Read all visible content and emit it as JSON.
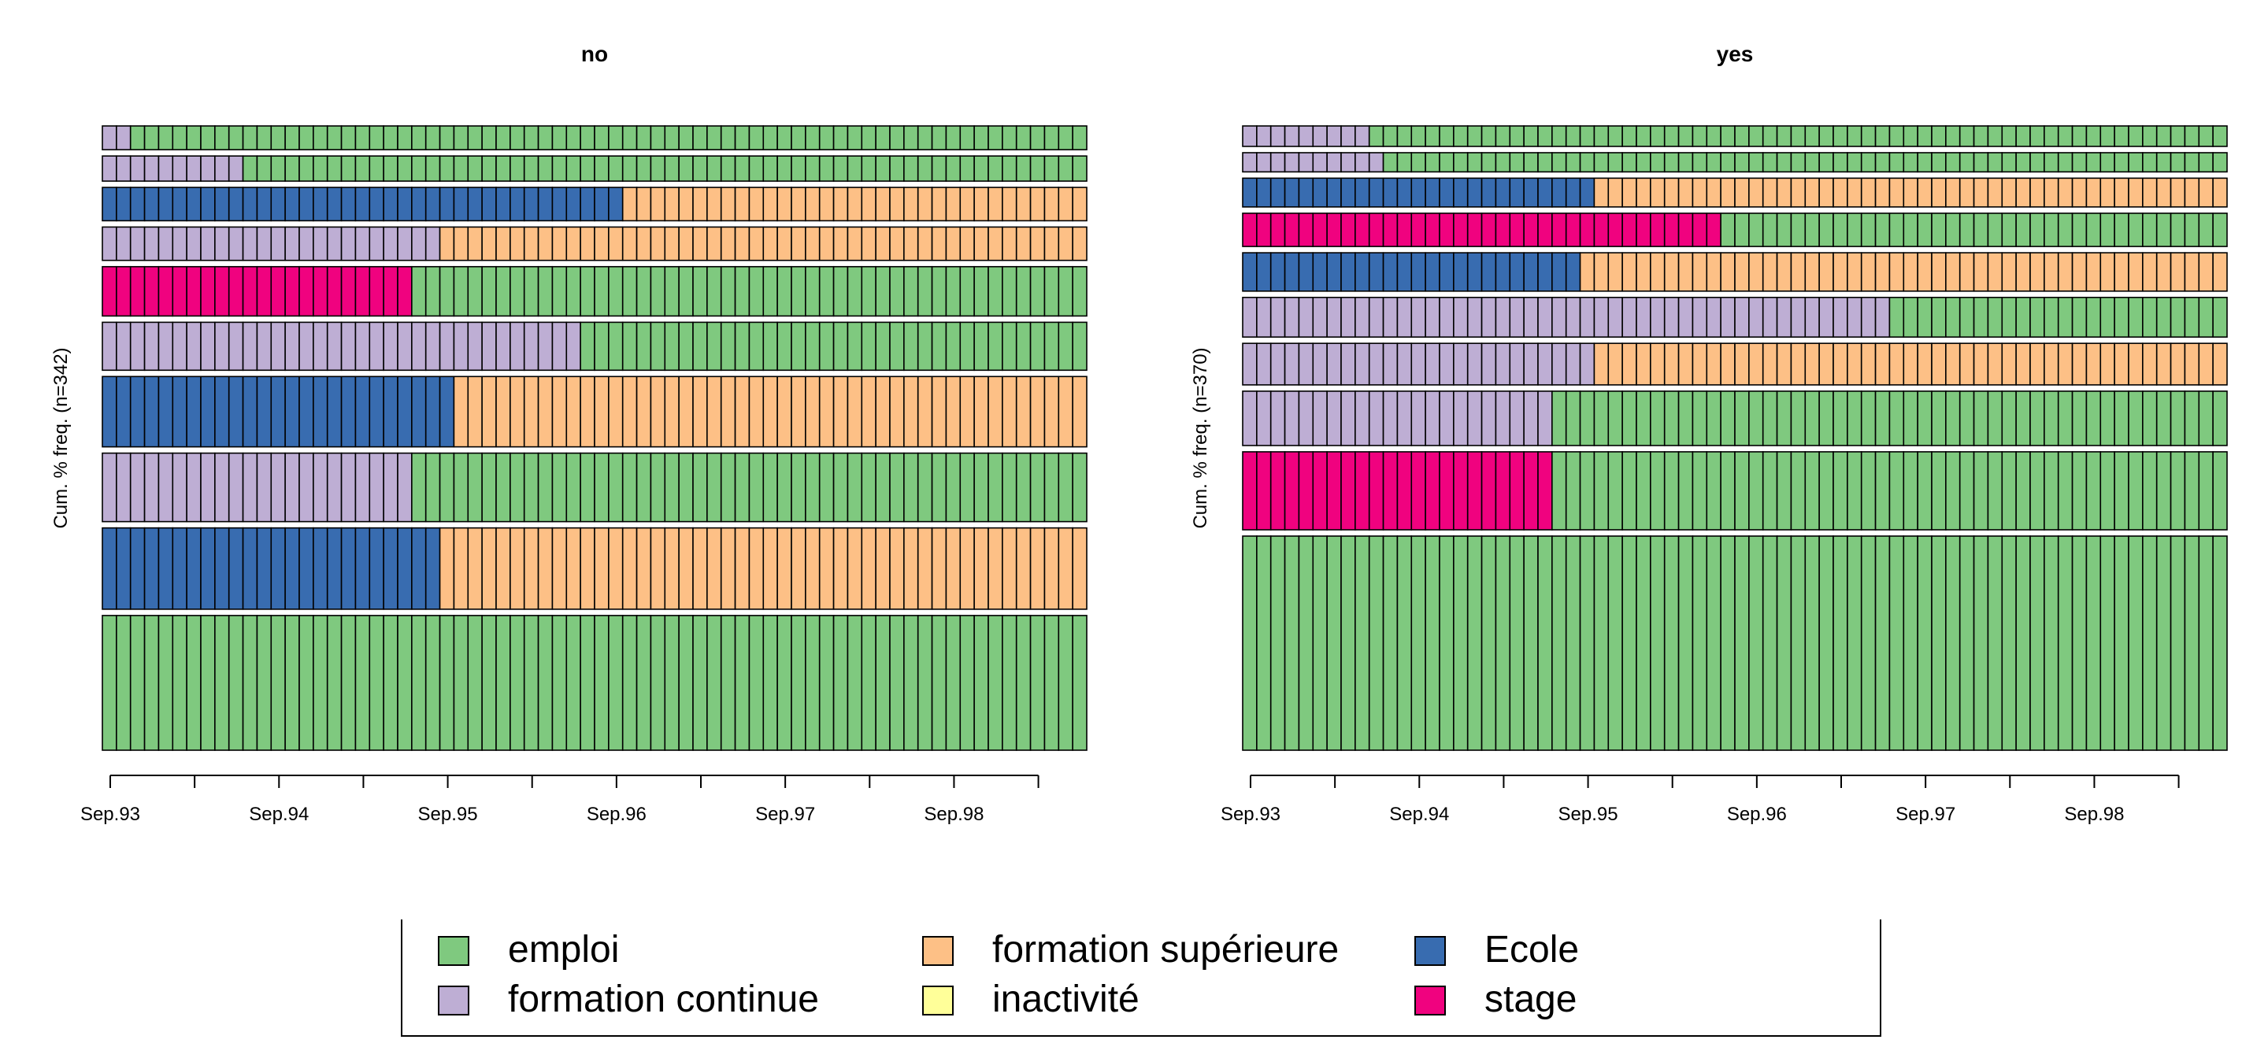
{
  "states": [
    {
      "key": "emploi",
      "label": "emploi",
      "color": "#7FC97F"
    },
    {
      "key": "formation_continue",
      "label": "formation continue",
      "color": "#BEAED4"
    },
    {
      "key": "formation_superieure",
      "label": "formation supérieure",
      "color": "#FDC086"
    },
    {
      "key": "inactivite",
      "label": "inactivité",
      "color": "#FFFF99"
    },
    {
      "key": "ecole",
      "label": "Ecole",
      "color": "#386CB0"
    },
    {
      "key": "stage",
      "label": "stage",
      "color": "#F0027F"
    }
  ],
  "legend": {
    "columns": [
      [
        "emploi",
        "formation_continue"
      ],
      [
        "formation_superieure",
        "inactivite"
      ],
      [
        "ecole",
        "stage"
      ]
    ]
  },
  "chart_data": [
    {
      "type": "sequence-frequency",
      "title": "no",
      "ylabel": "Cum. % freq. (n=342)",
      "n": 342,
      "n_months": 70,
      "x_ticks": [
        "Sep.93",
        "Sep.94",
        "Sep.95",
        "Sep.96",
        "Sep.97",
        "Sep.98"
      ],
      "x_tick_months": [
        0,
        12,
        24,
        36,
        48,
        60
      ],
      "x_minor_tick_months": [
        6,
        18,
        30,
        42,
        54,
        66
      ],
      "sequences": [
        {
          "cum_freq_pct": 29.5,
          "segments": [
            {
              "state": "emploi",
              "months": 70
            }
          ]
        },
        {
          "cum_freq_pct": 17.8,
          "segments": [
            {
              "state": "ecole",
              "months": 24
            },
            {
              "state": "formation_superieure",
              "months": 46
            }
          ]
        },
        {
          "cum_freq_pct": 15.0,
          "segments": [
            {
              "state": "formation_continue",
              "months": 22
            },
            {
              "state": "emploi",
              "months": 48
            }
          ]
        },
        {
          "cum_freq_pct": 15.4,
          "segments": [
            {
              "state": "ecole",
              "months": 25
            },
            {
              "state": "formation_superieure",
              "months": 45
            }
          ]
        },
        {
          "cum_freq_pct": 10.5,
          "segments": [
            {
              "state": "formation_continue",
              "months": 34
            },
            {
              "state": "emploi",
              "months": 36
            }
          ]
        },
        {
          "cum_freq_pct": 10.8,
          "segments": [
            {
              "state": "stage",
              "months": 22
            },
            {
              "state": "emploi",
              "months": 48
            }
          ]
        },
        {
          "cum_freq_pct": 7.3,
          "segments": [
            {
              "state": "formation_continue",
              "months": 24
            },
            {
              "state": "formation_superieure",
              "months": 46
            }
          ]
        },
        {
          "cum_freq_pct": 7.3,
          "segments": [
            {
              "state": "ecole",
              "months": 37
            },
            {
              "state": "formation_superieure",
              "months": 33
            }
          ]
        },
        {
          "cum_freq_pct": 5.5,
          "segments": [
            {
              "state": "formation_continue",
              "months": 10
            },
            {
              "state": "emploi",
              "months": 60
            }
          ]
        },
        {
          "cum_freq_pct": 5.2,
          "segments": [
            {
              "state": "formation_continue",
              "months": 2
            },
            {
              "state": "emploi",
              "months": 68
            }
          ]
        }
      ]
    },
    {
      "type": "sequence-frequency",
      "title": "yes",
      "ylabel": "Cum. % freq. (n=370)",
      "n": 370,
      "n_months": 70,
      "x_ticks": [
        "Sep.93",
        "Sep.94",
        "Sep.95",
        "Sep.96",
        "Sep.97",
        "Sep.98"
      ],
      "x_tick_months": [
        0,
        12,
        24,
        36,
        48,
        60
      ],
      "x_minor_tick_months": [
        6,
        18,
        30,
        42,
        54,
        66
      ],
      "sequences": [
        {
          "cum_freq_pct": 33.5,
          "segments": [
            {
              "state": "emploi",
              "months": 70
            }
          ]
        },
        {
          "cum_freq_pct": 12.2,
          "segments": [
            {
              "state": "stage",
              "months": 22
            },
            {
              "state": "emploi",
              "months": 48
            }
          ]
        },
        {
          "cum_freq_pct": 8.5,
          "segments": [
            {
              "state": "formation_continue",
              "months": 22
            },
            {
              "state": "emploi",
              "months": 48
            }
          ]
        },
        {
          "cum_freq_pct": 6.5,
          "segments": [
            {
              "state": "formation_continue",
              "months": 25
            },
            {
              "state": "formation_superieure",
              "months": 45
            }
          ]
        },
        {
          "cum_freq_pct": 6.2,
          "segments": [
            {
              "state": "formation_continue",
              "months": 46
            },
            {
              "state": "emploi",
              "months": 24
            }
          ]
        },
        {
          "cum_freq_pct": 6.0,
          "segments": [
            {
              "state": "ecole",
              "months": 24
            },
            {
              "state": "formation_superieure",
              "months": 46
            }
          ]
        },
        {
          "cum_freq_pct": 5.2,
          "segments": [
            {
              "state": "stage",
              "months": 34
            },
            {
              "state": "emploi",
              "months": 36
            }
          ]
        },
        {
          "cum_freq_pct": 4.5,
          "segments": [
            {
              "state": "ecole",
              "months": 25
            },
            {
              "state": "formation_superieure",
              "months": 45
            }
          ]
        },
        {
          "cum_freq_pct": 3.0,
          "segments": [
            {
              "state": "formation_continue",
              "months": 10
            },
            {
              "state": "emploi",
              "months": 60
            }
          ]
        },
        {
          "cum_freq_pct": 3.2,
          "segments": [
            {
              "state": "formation_continue",
              "months": 9
            },
            {
              "state": "emploi",
              "months": 61
            }
          ]
        }
      ]
    }
  ]
}
